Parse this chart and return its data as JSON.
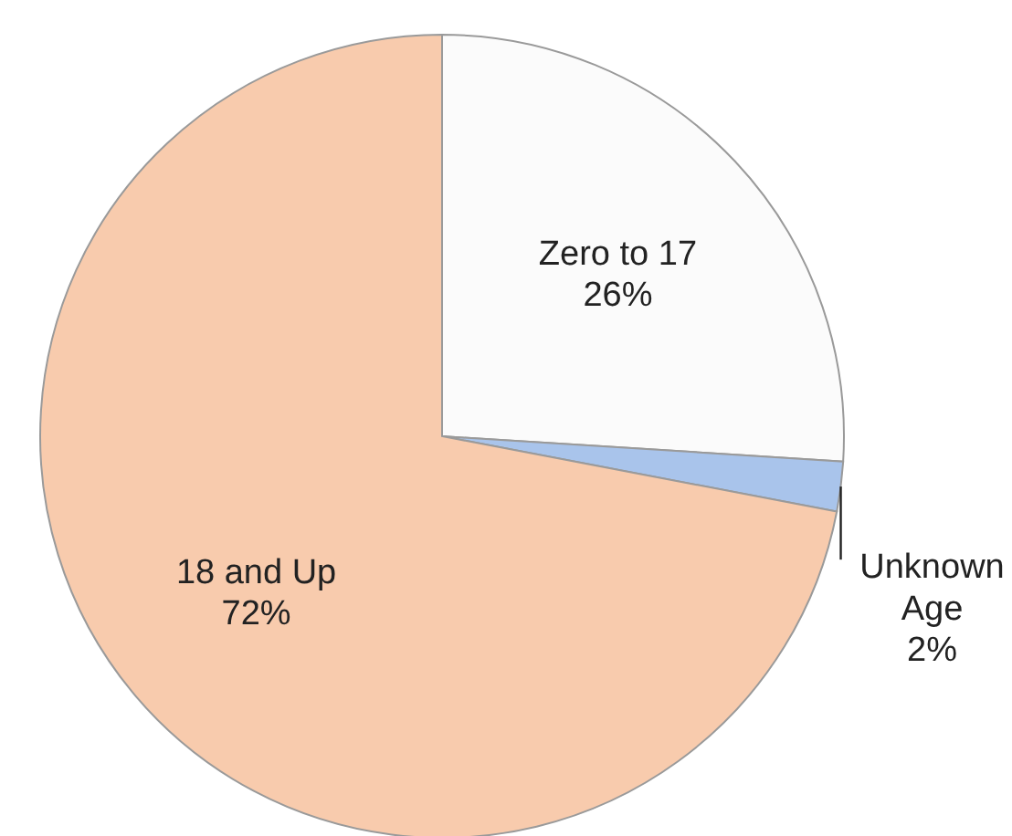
{
  "chart_data": {
    "type": "pie",
    "categories": [
      "Zero to 17",
      "Unknown Age",
      "18 and Up"
    ],
    "values": [
      26,
      2,
      72
    ],
    "colors": [
      "#fbfbfb",
      "#a9c4eb",
      "#f8cbad"
    ],
    "value_labels": [
      "26%",
      "2%",
      "72%"
    ]
  }
}
